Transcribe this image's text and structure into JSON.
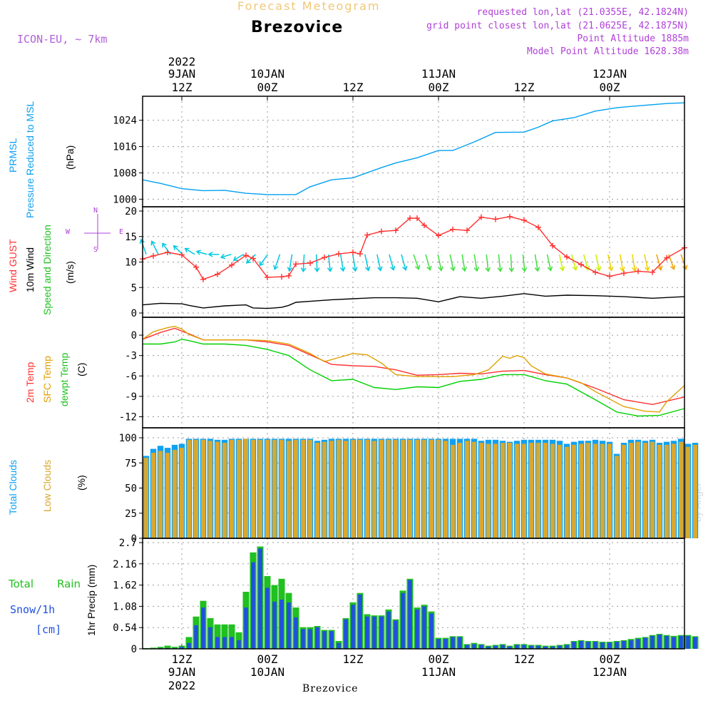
{
  "header": {
    "title_top": "Forecast Meteogram",
    "location": "Brezovice",
    "model": "ICON-EU,  ~ 7km",
    "requested": "requested lon,lat (21.0355E, 42.1824N)",
    "grid_point": "grid point closest lon,lat (21.0625E, 42.1875N)",
    "point_altitude": "Point Altitude 1885m",
    "model_altitude": "Model Point Altitude 1628.38m"
  },
  "footer": {
    "location": "Brezovice",
    "credit": "by Angel"
  },
  "colors": {
    "prmsl": "#00a0f0",
    "gust": "#ff3030",
    "wind10": "#000000",
    "t2m": "#ff3030",
    "sfc": "#e0a000",
    "dew": "#00d000",
    "total_clouds": "#10a0f0",
    "low_clouds": "#d8a830",
    "rain": "#20c020",
    "snow": "#2050e0",
    "arrow_ramp": [
      "#00c8e0",
      "#40e040",
      "#c8f000",
      "#f0d000",
      "#f0a000"
    ]
  },
  "time_axis": {
    "top_year_label": [
      "2022",
      "",
      "",
      "",
      "",
      ""
    ],
    "top_date_labels": [
      "9JAN",
      "10JAN",
      "",
      "11JAN",
      "",
      "12JAN"
    ],
    "hour_labels": [
      "12Z",
      "00Z",
      "12Z",
      "00Z",
      "12Z",
      "00Z"
    ],
    "bottom_date_labels": [
      "9JAN",
      "10JAN",
      "",
      "11JAN",
      "",
      "12JAN"
    ],
    "bottom_year_label": [
      "2022",
      "",
      "",
      "",
      "",
      ""
    ],
    "tick_hours": [
      12,
      24,
      36,
      48,
      60,
      72
    ],
    "hour_range": [
      6.5,
      82.5
    ]
  },
  "panel_labels": {
    "prmsl_short": "PRMSL",
    "prmsl_long": "Pressure Reduced to MSL",
    "prmsl_unit": "(hPa)",
    "gust": "Wind GUST",
    "wind10": "10m Wind",
    "wind_dir": "Speed and Direction",
    "wind_unit": "(m/s)",
    "compass_n": "N",
    "compass_s": "S",
    "compass_w": "W",
    "compass_e": "E",
    "t2m": "2m Temp",
    "sfc": "SFC Temp",
    "dew": "dewpt Temp",
    "temp_unit": "(C)",
    "total_clouds": "Total Clouds",
    "low_clouds": "Low Clouds",
    "cloud_unit": "(%)",
    "total_rain_a": "Total",
    "total_rain_b": "Rain",
    "snow": "Snow/1h",
    "snow_unit": "[cm]",
    "precip": "1hr Precip (mm)"
  },
  "chart_data": [
    {
      "type": "line",
      "panel": "pressure",
      "ylim": [
        999,
        1030
      ],
      "yticks": [
        "1000",
        "1008",
        "1016",
        "1024"
      ],
      "ytick_values": [
        1000,
        1008,
        1016,
        1024
      ],
      "series": [
        {
          "name": "PRMSL",
          "x": [
            6.5,
            9,
            12,
            15,
            18,
            21,
            24,
            27,
            28,
            30,
            33,
            36,
            40,
            42,
            45,
            48,
            50,
            53,
            56,
            60,
            62,
            64,
            67,
            70,
            73,
            76,
            80,
            82.5
          ],
          "values": [
            1005.9,
            1004.8,
            1003.2,
            1002.6,
            1002.7,
            1001.8,
            1001.4,
            1001.4,
            1001.4,
            1003.8,
            1005.9,
            1006.5,
            1009.6,
            1011,
            1012.6,
            1014.8,
            1014.8,
            1017.4,
            1020.3,
            1020.4,
            1021.9,
            1023.8,
            1024.8,
            1026.8,
            1027.8,
            1028.4,
            1029.1,
            1029.3
          ]
        }
      ]
    },
    {
      "type": "line",
      "panel": "wind",
      "ylim": [
        0,
        20
      ],
      "yticks": [
        "0",
        "5",
        "10",
        "15",
        "20"
      ],
      "ytick_values": [
        0,
        5,
        10,
        15,
        20
      ],
      "series": [
        {
          "name": "Wind GUST",
          "x": [
            6.5,
            8,
            10,
            12,
            14,
            15,
            17,
            19,
            21,
            22,
            24,
            26,
            27,
            28,
            30,
            32,
            34,
            36,
            37,
            38,
            40,
            42,
            44,
            45,
            46,
            48,
            50,
            52,
            54,
            56,
            58,
            60,
            62,
            64,
            66,
            68,
            70,
            72,
            74,
            76,
            78,
            80,
            82.5
          ],
          "values": [
            10.6,
            11.2,
            11.9,
            11.4,
            9.0,
            6.6,
            7.6,
            9.4,
            11.3,
            10.7,
            7.0,
            7.1,
            7.3,
            9.6,
            9.8,
            10.9,
            11.6,
            11.9,
            11.6,
            15.3,
            16,
            16.2,
            18.6,
            18.6,
            17.2,
            15.2,
            16.4,
            16.2,
            18.8,
            18.4,
            18.9,
            18.2,
            16.8,
            13.2,
            11,
            9.5,
            8,
            7.2,
            7.8,
            8.2,
            8.0,
            10.8,
            12.8
          ]
        },
        {
          "name": "10m Wind",
          "x": [
            6.5,
            9,
            12,
            13,
            15,
            18,
            21,
            22,
            24,
            26,
            27,
            28,
            30,
            33,
            36,
            39,
            42,
            45,
            48,
            51,
            54,
            57,
            60,
            63,
            66,
            70,
            74,
            78,
            82.5
          ],
          "values": [
            1.6,
            1.9,
            1.8,
            1.5,
            1.0,
            1.4,
            1.6,
            1.0,
            0.9,
            1.1,
            1.5,
            2.1,
            2.3,
            2.6,
            2.8,
            3.0,
            3.0,
            2.9,
            2.2,
            3.2,
            2.9,
            3.3,
            3.8,
            3.3,
            3.5,
            3.4,
            3.2,
            2.9,
            3.2
          ]
        }
      ],
      "arrow_dir_deg": [
        210,
        220,
        230,
        240,
        250,
        260,
        270,
        280,
        290,
        300,
        310,
        330,
        345,
        355,
        5,
        10,
        15,
        15,
        20,
        20,
        25,
        25,
        30,
        25,
        20,
        20,
        15,
        15,
        10,
        10,
        5,
        10,
        15,
        20,
        20,
        25,
        25,
        20,
        20,
        15,
        15,
        20,
        25,
        30,
        30
      ],
      "arrow_color_level": [
        0,
        0,
        0,
        0,
        0,
        0,
        0,
        0,
        0,
        0,
        0,
        0,
        0,
        0,
        0,
        0,
        0,
        0,
        0,
        0,
        0,
        0,
        1,
        1,
        1,
        1,
        1,
        1,
        1,
        1,
        1,
        1,
        1,
        1,
        2,
        2,
        2,
        2,
        3,
        3,
        3,
        3,
        4,
        4,
        4
      ]
    },
    {
      "type": "line",
      "panel": "temperature",
      "ylim": [
        -13,
        2
      ],
      "yticks": [
        "0",
        "-3",
        "-6",
        "-9",
        "-12"
      ],
      "ytick_values": [
        0,
        -3,
        -6,
        -9,
        -12
      ],
      "series": [
        {
          "name": "2m Temp",
          "x": [
            6.5,
            9,
            11,
            13,
            15,
            18,
            21,
            24,
            27,
            30,
            33,
            36,
            39,
            42,
            45,
            48,
            51,
            54,
            57,
            60,
            63,
            66,
            70,
            74,
            78,
            82.5
          ],
          "values": [
            -0.6,
            0.4,
            1.0,
            0.2,
            -0.7,
            -0.7,
            -0.7,
            -1.0,
            -1.5,
            -2.9,
            -4.3,
            -4.5,
            -4.6,
            -5.1,
            -5.9,
            -5.8,
            -5.6,
            -5.7,
            -5.3,
            -5.2,
            -5.8,
            -6.3,
            -7.8,
            -9.5,
            -10.2,
            -9.1
          ]
        },
        {
          "name": "SFC Temp",
          "x": [
            6.5,
            8,
            10,
            11,
            12,
            13,
            15,
            18,
            21,
            24,
            27,
            30,
            32,
            34,
            36,
            38,
            40,
            42,
            45,
            48,
            50,
            53,
            55,
            56,
            57,
            58,
            59,
            60,
            61,
            63,
            66,
            68,
            70,
            74,
            77,
            79,
            80,
            82.5
          ],
          "values": [
            -0.6,
            0.5,
            1.1,
            1.3,
            0.9,
            0.1,
            -0.7,
            -0.7,
            -0.7,
            -0.8,
            -1.3,
            -2.7,
            -3.9,
            -3.3,
            -2.7,
            -2.9,
            -4.1,
            -5.8,
            -6.1,
            -6.1,
            -6.1,
            -5.8,
            -5.1,
            -4.1,
            -3.1,
            -3.4,
            -3.0,
            -3.3,
            -4.5,
            -5.7,
            -6.3,
            -7.0,
            -8.3,
            -10.5,
            -11.2,
            -11.3,
            -9.8,
            -7.4
          ]
        },
        {
          "name": "dewpt Temp",
          "x": [
            6.5,
            9,
            11,
            12,
            13,
            15,
            18,
            21,
            24,
            27,
            30,
            33,
            36,
            39,
            42,
            45,
            48,
            51,
            54,
            57,
            60,
            63,
            66,
            70,
            73,
            76,
            79,
            82.5
          ],
          "values": [
            -1.3,
            -1.3,
            -1.0,
            -0.6,
            -0.8,
            -1.3,
            -1.3,
            -1.5,
            -2.1,
            -3.0,
            -5.1,
            -6.7,
            -6.5,
            -7.7,
            -8.0,
            -7.6,
            -7.7,
            -6.8,
            -6.5,
            -5.8,
            -5.8,
            -6.7,
            -7.2,
            -9.5,
            -11.3,
            -11.9,
            -11.8,
            -10.8
          ]
        }
      ]
    },
    {
      "type": "bar",
      "panel": "clouds",
      "ylim": [
        0,
        100
      ],
      "yticks": [
        "0",
        "25",
        "50",
        "75",
        "100"
      ],
      "ytick_values": [
        0,
        25,
        50,
        75,
        100
      ],
      "x_start": 7,
      "series": [
        {
          "name": "Total Clouds",
          "values": [
            82,
            89,
            92,
            90,
            93,
            94,
            99,
            99,
            99,
            99,
            98,
            98,
            99,
            99,
            99,
            99,
            99,
            99,
            99,
            99,
            99,
            99,
            99,
            99,
            97,
            98,
            99,
            99,
            99,
            99,
            99,
            99,
            99,
            99,
            99,
            99,
            99,
            99,
            99,
            99,
            99,
            99,
            99,
            99,
            99,
            99,
            99,
            97,
            98,
            98,
            97,
            96,
            97,
            98,
            98,
            98,
            98,
            98,
            97,
            94,
            96,
            97,
            97,
            98,
            97,
            96,
            84,
            95,
            98,
            98,
            97,
            98,
            95,
            96,
            97,
            99,
            94,
            95
          ]
        },
        {
          "name": "Low Clouds",
          "values": [
            80,
            85,
            87,
            85,
            88,
            90,
            98,
            98,
            98,
            97,
            96,
            95,
            98,
            98,
            99,
            98,
            98,
            98,
            98,
            98,
            97,
            98,
            98,
            98,
            95,
            96,
            97,
            98,
            97,
            98,
            98,
            98,
            97,
            98,
            98,
            98,
            98,
            98,
            98,
            98,
            98,
            98,
            97,
            93,
            95,
            97,
            96,
            95,
            94,
            94,
            95,
            95,
            94,
            94,
            95,
            95,
            95,
            94,
            93,
            91,
            93,
            94,
            95,
            94,
            94,
            94,
            82,
            93,
            95,
            96,
            95,
            96,
            93,
            93,
            94,
            96,
            91,
            93
          ]
        }
      ]
    },
    {
      "type": "bar",
      "panel": "precip",
      "ylim": [
        0,
        2.7
      ],
      "yticks": [
        "0",
        "0.54",
        "1.08",
        "1.62",
        "2.16",
        "2.7"
      ],
      "ytick_values": [
        0,
        0.54,
        1.08,
        1.62,
        2.16,
        2.7
      ],
      "x_start": 7,
      "series": [
        {
          "name": "Total Rain",
          "values": [
            0.02,
            0.03,
            0.05,
            0.08,
            0.05,
            0.08,
            0.3,
            0.82,
            1.22,
            0.78,
            0.62,
            0.62,
            0.62,
            0.42,
            1.45,
            2.45,
            2.6,
            1.85,
            1.62,
            1.78,
            1.42,
            1.05,
            0.55,
            0.55,
            0.58,
            0.48,
            0.48,
            0.2,
            0.78,
            1.18,
            1.42,
            0.88,
            0.85,
            0.85,
            1.0,
            0.75,
            1.48,
            1.78,
            1.05,
            1.12,
            0.95,
            0.28,
            0.28,
            0.32,
            0.32,
            0.12,
            0.15,
            0.12,
            0.08,
            0.1,
            0.12,
            0.08,
            0.12,
            0.12,
            0.1,
            0.1,
            0.08,
            0.08,
            0.1,
            0.12,
            0.2,
            0.22,
            0.2,
            0.2,
            0.18,
            0.18,
            0.2,
            0.22,
            0.25,
            0.28,
            0.3,
            0.35,
            0.38,
            0.35,
            0.33,
            0.35,
            0.35,
            0.32
          ]
        },
        {
          "name": "Snow/1h",
          "values": [
            0,
            0,
            0.02,
            0.02,
            0.02,
            0.05,
            0.15,
            0.6,
            1.05,
            0.55,
            0.3,
            0.3,
            0.3,
            0.22,
            1.05,
            2.2,
            2.55,
            1.55,
            1.2,
            1.25,
            1.18,
            0.8,
            0.5,
            0.5,
            0.55,
            0.45,
            0.45,
            0.15,
            0.75,
            1.12,
            1.38,
            0.82,
            0.82,
            0.82,
            0.95,
            0.72,
            1.42,
            1.75,
            1.0,
            1.08,
            0.9,
            0.25,
            0.25,
            0.3,
            0.3,
            0.1,
            0.12,
            0.1,
            0.06,
            0.08,
            0.1,
            0.06,
            0.1,
            0.1,
            0.08,
            0.08,
            0.06,
            0.06,
            0.08,
            0.1,
            0.18,
            0.2,
            0.18,
            0.18,
            0.16,
            0.16,
            0.18,
            0.2,
            0.22,
            0.25,
            0.28,
            0.33,
            0.36,
            0.33,
            0.3,
            0.33,
            0.33,
            0.3
          ]
        }
      ]
    }
  ]
}
